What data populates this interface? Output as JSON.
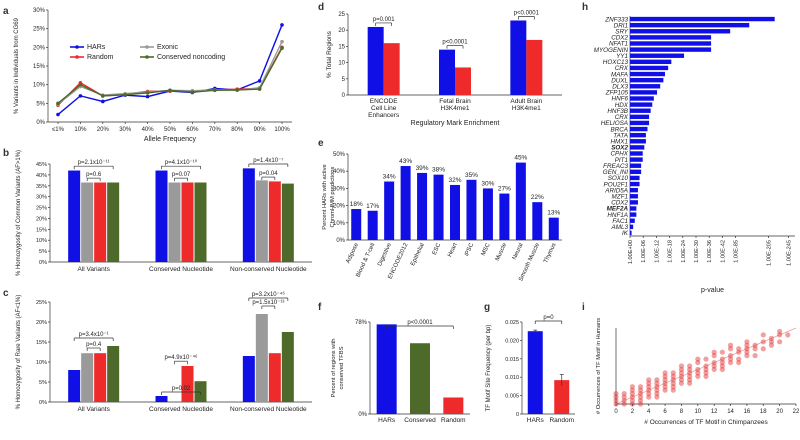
{
  "colors": {
    "blue": "#1010e6",
    "red": "#ee2a2a",
    "gray": "#9a9a9a",
    "green": "#4d6a2a"
  },
  "chart_data": [
    {
      "panel": "a",
      "type": "line",
      "xlabel": "Allele Frequency",
      "ylabel": "% Variants in Individuals from CG69",
      "x": [
        "≤1%",
        "10%",
        "20%",
        "30%",
        "40%",
        "50%",
        "60%",
        "70%",
        "80%",
        "90%",
        "100%"
      ],
      "y_ticks": [
        "0%",
        "5%",
        "10%",
        "15%",
        "20%",
        "25%",
        "30%"
      ],
      "ylim": [
        0,
        30
      ],
      "legend": "top-left",
      "series": [
        {
          "name": "HARs",
          "color": "blue",
          "values": [
            2.0,
            7.0,
            5.5,
            7.2,
            6.8,
            8.3,
            7.9,
            9.0,
            8.6,
            11.0,
            26.0
          ]
        },
        {
          "name": "Random",
          "color": "red",
          "values": [
            4.5,
            10.5,
            7.0,
            7.4,
            8.2,
            8.3,
            8.3,
            8.6,
            8.8,
            9.0,
            20.0
          ]
        },
        {
          "name": "Exonic",
          "color": "gray",
          "values": [
            4.8,
            9.5,
            7.2,
            7.6,
            8.0,
            8.5,
            8.4,
            8.6,
            8.5,
            9.2,
            21.5
          ]
        },
        {
          "name": "Conserved noncoding",
          "color": "green",
          "values": [
            5.0,
            10.0,
            7.0,
            7.3,
            7.8,
            8.5,
            8.0,
            8.5,
            8.6,
            8.8,
            19.8
          ]
        }
      ]
    },
    {
      "panel": "b",
      "type": "bar",
      "ylabel": "% Homozygosity of Common Variants (AF>1%)",
      "categories": [
        "All Variants",
        "Conserved Nucleotide",
        "Non-conserved Nucleotide"
      ],
      "y_ticks": [
        "0%",
        "5%",
        "10%",
        "15%",
        "20%",
        "25%",
        "30%",
        "35%",
        "40%",
        "45%"
      ],
      "ylim": [
        0,
        45
      ],
      "series": [
        {
          "color": "blue",
          "values": [
            42,
            42,
            43
          ]
        },
        {
          "color": "gray",
          "values": [
            36.5,
            36.5,
            37.5
          ]
        },
        {
          "color": "red",
          "values": [
            36.5,
            36.5,
            37
          ]
        },
        {
          "color": "green",
          "values": [
            36.5,
            36.5,
            36
          ]
        }
      ],
      "annotations": [
        {
          "group": 0,
          "text": "p=2.1x10⁻¹¹",
          "level": 44
        },
        {
          "group": 0,
          "text": "p=0.6",
          "level": 38.5
        },
        {
          "group": 1,
          "text": "p=4.1x10⁻¹⁰",
          "level": 44
        },
        {
          "group": 1,
          "text": "p=0.07",
          "level": 38.5
        },
        {
          "group": 2,
          "text": "p=1.4x10⁻⁷",
          "level": 45
        },
        {
          "group": 2,
          "text": "p=0.04",
          "level": 39
        }
      ]
    },
    {
      "panel": "c",
      "type": "bar",
      "ylabel": "% Homozygosity of Rare Variants (AF<1%)",
      "categories": [
        "All Variants",
        "Conserved Nucleotide",
        "Non-conserved Nucleotide"
      ],
      "y_ticks": [
        "0%",
        "5%",
        "10%",
        "15%",
        "20%",
        "25%"
      ],
      "ylim": [
        0,
        25
      ],
      "series": [
        {
          "color": "blue",
          "values": [
            8,
            1.5,
            11.5
          ]
        },
        {
          "color": "gray",
          "values": [
            12.2,
            0,
            22
          ]
        },
        {
          "color": "red",
          "values": [
            12.2,
            9,
            12.2
          ]
        },
        {
          "color": "green",
          "values": [
            14,
            5.2,
            17.5
          ]
        }
      ],
      "annotations": [
        {
          "group": 0,
          "text": "p=3.4x10⁻¹",
          "level": 16
        },
        {
          "group": 0,
          "text": "p=0.4",
          "level": 13.5
        },
        {
          "group": 1,
          "text": "p=0.02",
          "level": 2.5
        },
        {
          "group": 1,
          "text": "p=4.9x10⁻⁴⁶",
          "level": 10.2
        },
        {
          "group": 2,
          "text": "p=3.2x10⁻⁴⁶",
          "level": 26
        },
        {
          "group": 2,
          "text": "p=1.5x10⁻¹³",
          "level": 24
        }
      ]
    },
    {
      "panel": "d",
      "type": "bar",
      "ylabel": "% Total Regions",
      "xlabel": "Regulatory Mark Enrichment",
      "categories": [
        "ENCODE Cell Line Enhancers",
        "Fetal Brain H3K4me1",
        "Adult Brain H3K4me1"
      ],
      "y_ticks": [
        "0",
        "5",
        "10",
        "15",
        "20",
        "25"
      ],
      "ylim": [
        0,
        25
      ],
      "series": [
        {
          "color": "blue",
          "values": [
            21,
            14,
            23
          ]
        },
        {
          "color": "red",
          "values": [
            16,
            8.5,
            17
          ]
        }
      ],
      "pvalues": [
        "p=0.001",
        "p<0.0001",
        "p<0.0001"
      ]
    },
    {
      "panel": "e",
      "type": "bar",
      "ylabel": "Percent HARs with active ChromHMM predictions",
      "y_ticks": [
        "0%",
        "10%",
        "20%",
        "30%",
        "40%",
        "50%"
      ],
      "ylim": [
        0,
        50
      ],
      "categories": [
        "Adipose",
        "Blood & T-cell",
        "Digestive",
        "ENCODE2012",
        "Epithelial",
        "ESC",
        "Heart",
        "iPSC",
        "MSC",
        "Muscle",
        "Neural",
        "Smooth Muscle",
        "Thymus"
      ],
      "values": [
        18,
        17,
        34,
        43,
        39,
        38,
        32,
        35,
        30,
        27,
        45,
        22,
        13
      ],
      "data_labels": [
        "18%",
        "17%",
        "34%",
        "43%",
        "39%",
        "38%",
        "32%",
        "35%",
        "30%",
        "27%",
        "45%",
        "22%",
        "13%"
      ]
    },
    {
      "panel": "f",
      "type": "bar",
      "ylabel": "Percent of regions with conserved TFBS",
      "categories": [
        "HARs",
        "Conserved",
        "Random"
      ],
      "y_tick_labels": [
        "0%",
        "78%"
      ],
      "ylim": [
        0,
        78
      ],
      "values": [
        76,
        60,
        14
      ],
      "colors": [
        "blue",
        "green",
        "red"
      ],
      "pvalue": "p<0.0001"
    },
    {
      "panel": "g",
      "type": "bar",
      "ylabel": "TF Motif Site Frequency (per bp)",
      "categories": [
        "HARs",
        "Random"
      ],
      "y_ticks": [
        "0",
        "0.005",
        "0.010",
        "0.015",
        "0.020",
        "0.025"
      ],
      "ylim": [
        0,
        0.025
      ],
      "values": [
        0.0225,
        0.0092
      ],
      "errors": [
        0.0003,
        0.0015
      ],
      "colors": [
        "blue",
        "red"
      ],
      "pvalue": "p=0"
    },
    {
      "panel": "h",
      "type": "bar",
      "orientation": "horizontal",
      "xlabel": "p-value",
      "categories": [
        "ZNF333",
        "DRI1",
        "SRY",
        "CDX2",
        "NFAT1",
        "MYOGENIN",
        "YY1",
        "HOXC13",
        "CRX",
        "MAFA",
        "DUXL",
        "DLX3",
        "ZFP105",
        "HNF6",
        "HDX",
        "HNF3B",
        "CRX",
        "HELIOSA",
        "BRCA",
        "TATA",
        "HMX1",
        "SOX2",
        "CPHX",
        "PIT1",
        "FREAC3",
        "GEN_INI",
        "SOX10",
        "POU2F1",
        "ARID5A",
        "MZF1",
        "CDX2",
        "MEF2A",
        "HNF1A",
        "FAC1",
        "AML3",
        "IK"
      ],
      "bold_categories": [
        "SOX2",
        "MEF2A"
      ],
      "values": [
        91,
        75,
        63,
        51,
        51,
        51,
        34,
        26,
        24,
        22,
        21,
        19,
        17,
        15,
        14,
        13,
        12,
        12,
        11,
        10,
        10,
        9,
        8,
        8,
        7,
        7,
        6,
        6,
        5,
        5,
        5,
        4,
        4,
        3,
        2,
        1
      ],
      "x_tick_labels": [
        "1.00E+00",
        "1.00E-06",
        "1.00E-12",
        "1.00E-18",
        "1.00E-24",
        "1.00E-30",
        "1.00E-36",
        "1.00E-42",
        "1.00E-85",
        "1.00E-205",
        "1.00E-245"
      ]
    },
    {
      "panel": "i",
      "type": "scatter",
      "xlabel": "# Occurrences of TF Motif in Chimpanzees",
      "ylabel": "# Occurrences of TF Motif in Humans",
      "x_ticks": [
        0,
        2,
        4,
        6,
        8,
        10,
        12,
        14,
        16,
        18,
        20,
        22
      ],
      "xlim": [
        0,
        22
      ],
      "ylim": [
        0,
        22
      ],
      "diagonal": true,
      "points": [
        [
          0,
          0
        ],
        [
          1,
          0
        ],
        [
          0,
          1
        ],
        [
          1,
          1
        ],
        [
          2,
          1
        ],
        [
          1,
          2
        ],
        [
          2,
          2
        ],
        [
          3,
          2
        ],
        [
          2,
          3
        ],
        [
          3,
          3
        ],
        [
          4,
          3
        ],
        [
          3,
          4
        ],
        [
          4,
          4
        ],
        [
          5,
          4
        ],
        [
          4,
          5
        ],
        [
          5,
          5
        ],
        [
          6,
          5
        ],
        [
          5,
          6
        ],
        [
          6,
          6
        ],
        [
          7,
          6
        ],
        [
          6,
          7
        ],
        [
          7,
          7
        ],
        [
          8,
          7
        ],
        [
          7,
          8
        ],
        [
          8,
          8
        ],
        [
          9,
          8
        ],
        [
          8,
          9
        ],
        [
          9,
          9
        ],
        [
          10,
          9
        ],
        [
          9,
          10
        ],
        [
          10,
          10
        ],
        [
          11,
          10
        ],
        [
          11,
          11
        ],
        [
          12,
          11
        ],
        [
          12,
          12
        ],
        [
          13,
          12
        ],
        [
          13,
          13
        ],
        [
          14,
          13
        ],
        [
          14,
          14
        ],
        [
          15,
          15
        ],
        [
          16,
          16
        ],
        [
          17,
          17
        ],
        [
          18,
          18
        ],
        [
          19,
          19
        ],
        [
          20,
          20
        ],
        [
          1,
          3
        ],
        [
          3,
          1
        ],
        [
          2,
          5
        ],
        [
          5,
          2
        ],
        [
          4,
          7
        ],
        [
          7,
          4
        ],
        [
          6,
          9
        ],
        [
          9,
          6
        ],
        [
          8,
          11
        ],
        [
          11,
          8
        ],
        [
          10,
          13
        ],
        [
          13,
          10
        ],
        [
          12,
          15
        ],
        [
          15,
          12
        ],
        [
          14,
          17
        ],
        [
          17,
          14
        ],
        [
          3,
          0
        ],
        [
          0,
          3
        ],
        [
          5,
          3
        ],
        [
          3,
          5
        ],
        [
          7,
          5
        ],
        [
          5,
          7
        ],
        [
          9,
          7
        ],
        [
          7,
          9
        ],
        [
          11,
          9
        ],
        [
          9,
          11
        ],
        [
          13,
          11
        ],
        [
          11,
          13
        ],
        [
          15,
          13
        ],
        [
          13,
          15
        ],
        [
          16,
          15
        ],
        [
          15,
          16
        ],
        [
          18,
          16
        ],
        [
          16,
          18
        ],
        [
          19,
          17
        ],
        [
          20,
          18
        ],
        [
          18,
          20
        ],
        [
          2,
          0
        ],
        [
          0,
          2
        ],
        [
          4,
          2
        ],
        [
          2,
          4
        ],
        [
          6,
          4
        ],
        [
          4,
          6
        ],
        [
          8,
          6
        ],
        [
          6,
          8
        ],
        [
          10,
          8
        ],
        [
          8,
          10
        ],
        [
          12,
          10
        ],
        [
          10,
          12
        ],
        [
          14,
          12
        ],
        [
          12,
          14
        ],
        [
          16,
          14
        ],
        [
          14,
          16
        ],
        [
          17,
          16
        ],
        [
          16,
          17
        ],
        [
          19,
          18
        ],
        [
          21,
          20
        ],
        [
          20,
          21
        ]
      ]
    }
  ]
}
